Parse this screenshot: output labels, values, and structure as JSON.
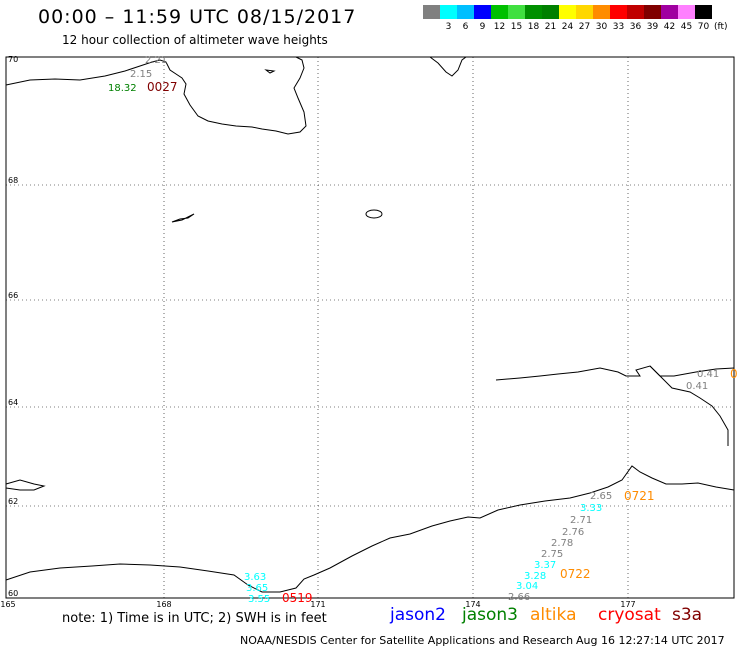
{
  "header": {
    "title": "00:00 – 11:59 UTC 08/15/2017",
    "subtitle": "12 hour collection of altimeter wave heights"
  },
  "scale": {
    "unit": "(ft)",
    "swatches": [
      {
        "label": "",
        "color": "#808080"
      },
      {
        "label": "3",
        "color": "#00ffff"
      },
      {
        "label": "6",
        "color": "#00bfff"
      },
      {
        "label": "9",
        "color": "#0000ff"
      },
      {
        "label": "12",
        "color": "#00c000"
      },
      {
        "label": "15",
        "color": "#40e040"
      },
      {
        "label": "18",
        "color": "#009000"
      },
      {
        "label": "21",
        "color": "#008000"
      },
      {
        "label": "24",
        "color": "#ffff00"
      },
      {
        "label": "27",
        "color": "#ffd700"
      },
      {
        "label": "30",
        "color": "#ff8c00"
      },
      {
        "label": "33",
        "color": "#ff0000"
      },
      {
        "label": "36",
        "color": "#c00000"
      },
      {
        "label": "39",
        "color": "#800000"
      },
      {
        "label": "42",
        "color": "#a000a0"
      },
      {
        "label": "45",
        "color": "#ff80ff"
      },
      {
        "label": "70",
        "color": "#000000"
      }
    ]
  },
  "map": {
    "lat_labels": [
      "70",
      "68",
      "66",
      "64",
      "62",
      "60"
    ],
    "lon_labels": [
      "165",
      "168",
      "171",
      "174",
      "177"
    ]
  },
  "observations": [
    {
      "text": "2.21",
      "color": "#808080"
    },
    {
      "text": "2.15",
      "color": "#808080"
    },
    {
      "text": "18.32",
      "color": "#008000"
    },
    {
      "text": "0027",
      "color": "#800000"
    },
    {
      "text": "0.41",
      "color": "#808080"
    },
    {
      "text": "0.41",
      "color": "#808080"
    },
    {
      "text": "0",
      "color": "#ff8c00"
    },
    {
      "text": "2.65",
      "color": "#808080"
    },
    {
      "text": "0721",
      "color": "#ff8c00"
    },
    {
      "text": "3.33",
      "color": "#00ffff"
    },
    {
      "text": "2.71",
      "color": "#808080"
    },
    {
      "text": "2.76",
      "color": "#808080"
    },
    {
      "text": "2.78",
      "color": "#808080"
    },
    {
      "text": "2.75",
      "color": "#808080"
    },
    {
      "text": "3.37",
      "color": "#00ffff"
    },
    {
      "text": "3.28",
      "color": "#00ffff"
    },
    {
      "text": "0722",
      "color": "#ff8c00"
    },
    {
      "text": "3.04",
      "color": "#00ffff"
    },
    {
      "text": "2.66",
      "color": "#808080"
    },
    {
      "text": "3.63",
      "color": "#00ffff"
    },
    {
      "text": "3.65",
      "color": "#00ffff"
    },
    {
      "text": "3.55",
      "color": "#00ffff"
    },
    {
      "text": "0519",
      "color": "#ff0000"
    }
  ],
  "footer": {
    "note": "note: 1) Time is in UTC; 2) SWH is in feet",
    "credit": "NOAA/NESDIS Center for Satellite Applications and Research",
    "timestamp": "Aug 16 12:27:14 UTC 2017"
  },
  "legend": [
    {
      "label": "jason2",
      "color": "#0000ff"
    },
    {
      "label": "jason3",
      "color": "#008000"
    },
    {
      "label": "altika",
      "color": "#ff8c00"
    },
    {
      "label": "cryosat",
      "color": "#ff0000"
    },
    {
      "label": "s3a",
      "color": "#800000"
    }
  ]
}
